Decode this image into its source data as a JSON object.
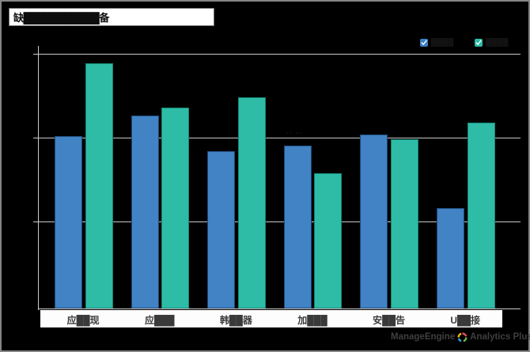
{
  "title": {
    "text": "缺███████████备"
  },
  "legend": {
    "items": [
      {
        "label": "████",
        "checkbox_color": "#3b7fc4",
        "checked": true
      },
      {
        "label": "████",
        "checkbox_color": "#2ebca7",
        "checked": true
      }
    ]
  },
  "chart_data": {
    "type": "bar",
    "title": "缺███████████备",
    "categories": [
      "应██现",
      "应███",
      "韩██器",
      "加███",
      "安██告",
      "U██接"
    ],
    "series": [
      {
        "name": "████",
        "color": "#4183c4",
        "edge_color": "#1c4878",
        "values": [
          40.6,
          45.5,
          37.1,
          38.4,
          41.0,
          23.7
        ]
      },
      {
        "name": "████",
        "color": "#2ebca7",
        "edge_color": "#148573",
        "values": [
          57.8,
          47.3,
          49.8,
          31.9,
          39.9,
          43.8
        ]
      }
    ],
    "xlabel": "",
    "ylabel": "",
    "ylim": [
      0,
      62
    ],
    "gridline_values": [
      20,
      40,
      60
    ],
    "grid": "horizontal",
    "axis_tick_labels_visible": false,
    "legend_position": "top-right",
    "background": "#000000",
    "axis_color": "#cccccc"
  },
  "overlay": {
    "faint_marks": "·· ··"
  },
  "footer": {
    "brand": "ManageEngine",
    "product": "Analytics Plus"
  }
}
